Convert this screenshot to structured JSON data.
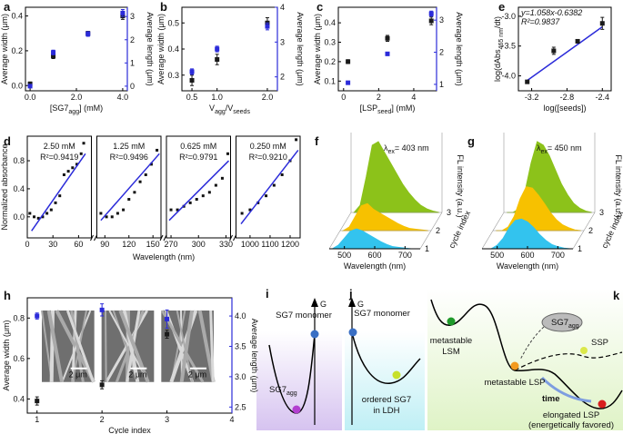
{
  "chart_data": [
    {
      "type": "scatter",
      "label": "a",
      "x_label": [
        "[SG7",
        "agg",
        "] (mM)"
      ],
      "y_label": "Average width (μm)",
      "y2_label": "Average length (μm)",
      "xlim": [
        -0.2,
        4.2
      ],
      "xticks": [
        {
          "value": 0,
          "label": "0.0"
        },
        {
          "value": 2,
          "label": "2.0"
        },
        {
          "value": 4,
          "label": "4.0"
        }
      ],
      "ylim": [
        -0.03,
        0.45
      ],
      "yticks": [
        {
          "value": 0,
          "label": "0.0"
        },
        0.2,
        0.4
      ],
      "y2lim": [
        -0.2,
        3.4
      ],
      "y2ticks": [
        0,
        1,
        2,
        3
      ],
      "series": [
        {
          "color": "#1a1a1a",
          "x": [
            0,
            1,
            2.5,
            4
          ],
          "values": [
            0.01,
            0.17,
            0.3,
            0.4
          ],
          "errors": [
            0.01,
            0.015,
            0.012,
            0.02
          ]
        },
        {
          "color": "#2b2bd9",
          "axis": "y2",
          "x": [
            0,
            1,
            2.5,
            4
          ],
          "values": [
            0.0,
            1.45,
            2.25,
            3.15
          ],
          "errors": [
            0.05,
            0.1,
            0.1,
            0.15
          ]
        }
      ]
    },
    {
      "type": "scatter",
      "label": "b",
      "x_label": [
        "V",
        "agg",
        "/V",
        "seeds"
      ],
      "y_label": "Average width (μm)",
      "y2_label": "Average length (μm)",
      "xlim": [
        0.3,
        2.2
      ],
      "xticks": [
        0.5,
        {
          "value": 1,
          "label": "1.0"
        },
        {
          "value": 2,
          "label": "2.0"
        }
      ],
      "ylim": [
        0.24,
        0.56
      ],
      "yticks": [
        0.3,
        0.4,
        0.5
      ],
      "y2lim": [
        1.6,
        4.0
      ],
      "y2ticks": [
        2,
        3,
        4
      ],
      "series": [
        {
          "color": "#1a1a1a",
          "x": [
            0.5,
            1,
            2
          ],
          "values": [
            0.28,
            0.36,
            0.5
          ],
          "errors": [
            0.02,
            0.02,
            0.02
          ]
        },
        {
          "color": "#2b2bd9",
          "axis": "y2",
          "x": [
            0.5,
            1,
            2
          ],
          "values": [
            2.15,
            2.8,
            3.45
          ],
          "errors": [
            0.08,
            0.08,
            0.1
          ]
        }
      ]
    },
    {
      "type": "scatter",
      "label": "c",
      "x_label": [
        "[LSP",
        "seed",
        "] (mM)"
      ],
      "y_label": "Average width (μm)",
      "y2_label": "Average length (μm)",
      "xlim": [
        -0.3,
        5.3
      ],
      "xticks": [
        0,
        2,
        4
      ],
      "ylim": [
        0.05,
        0.48
      ],
      "yticks": [
        0.1,
        0.2,
        0.3,
        0.4
      ],
      "y2lim": [
        0.8,
        3.4
      ],
      "y2ticks": [
        1,
        2,
        3
      ],
      "series": [
        {
          "color": "#1a1a1a",
          "x": [
            0.25,
            2.5,
            5
          ],
          "values": [
            0.2,
            0.32,
            0.41
          ],
          "errors": [
            0.01,
            0.015,
            0.02
          ]
        },
        {
          "color": "#2b2bd9",
          "axis": "y2",
          "x": [
            0.25,
            2.5,
            5
          ],
          "values": [
            1.05,
            1.95,
            3.2
          ],
          "errors": [
            0.05,
            0.05,
            0.08
          ]
        }
      ]
    },
    {
      "type": "kinetics",
      "label": "d",
      "y_label": "Normalized absorbance",
      "x_label": "Wavelength (nm)",
      "ylim": [
        -0.3,
        1.15
      ],
      "yticks": [
        {
          "value": 0,
          "label": "0.0"
        },
        0.4,
        0.8
      ],
      "fit_color": "#2b2bd9",
      "panels": [
        {
          "conc": "2.50 mM",
          "r2": "R²=0.9419",
          "xlim": [
            0,
            75
          ],
          "xticks": [
            0,
            30,
            60
          ],
          "x": [
            3,
            8,
            13,
            18,
            23,
            28,
            33,
            38,
            43,
            48,
            53,
            58,
            63,
            66
          ],
          "values": [
            0.05,
            0.0,
            -0.02,
            0.0,
            0.05,
            0.1,
            0.2,
            0.3,
            0.6,
            0.65,
            0.7,
            0.75,
            0.9,
            1.05
          ],
          "fit_x": [
            5,
            68
          ],
          "fit_y": [
            -0.2,
            0.9
          ]
        },
        {
          "conc": "1.25 mM",
          "r2": "R²=0.9496",
          "xlim": [
            80,
            160
          ],
          "xticks": [
            90,
            120,
            150
          ],
          "x": [
            85,
            92,
            99,
            106,
            113,
            120,
            127,
            134,
            141,
            148,
            155
          ],
          "values": [
            0.05,
            0.0,
            0.0,
            0.05,
            0.1,
            0.25,
            0.35,
            0.5,
            0.6,
            0.75,
            0.95
          ],
          "fit_x": [
            85,
            158
          ],
          "fit_y": [
            -0.05,
            0.9
          ]
        },
        {
          "conc": "0.625 mM",
          "r2": "R²=0.9791",
          "xlim": [
            265,
            335
          ],
          "xticks": [
            270,
            300,
            330
          ],
          "x": [
            270,
            277,
            284,
            291,
            298,
            305,
            312,
            319,
            326,
            332
          ],
          "values": [
            0.1,
            0.1,
            0.15,
            0.2,
            0.25,
            0.3,
            0.35,
            0.45,
            0.55,
            0.9
          ],
          "fit_x": [
            268,
            333
          ],
          "fit_y": [
            -0.05,
            0.8
          ]
        },
        {
          "conc": "0.250 mM",
          "r2": "R²=0.9210",
          "xlim": [
            930,
            1250
          ],
          "xticks": [
            1000,
            1100,
            1200
          ],
          "x": [
            960,
            1000,
            1040,
            1080,
            1120,
            1160,
            1200,
            1230
          ],
          "values": [
            0.05,
            0.1,
            0.2,
            0.3,
            0.45,
            0.6,
            0.8,
            1.1
          ],
          "fit_x": [
            955,
            1240
          ],
          "fit_y": [
            -0.1,
            0.95
          ]
        }
      ]
    },
    {
      "type": "scatter",
      "label": "e",
      "x_label": "log([seeds])",
      "y_label": [
        "log(dAbs",
        "465 nm",
        "/dt)"
      ],
      "xlim": [
        -3.35,
        -2.3
      ],
      "xticks": [
        -3.2,
        -2.8,
        -2.4
      ],
      "ylim": [
        -4.25,
        -2.85
      ],
      "yticks": [
        {
          "value": -4,
          "label": "-4.0"
        },
        -3.5,
        {
          "value": -3,
          "label": "-3.0"
        }
      ],
      "series": [
        {
          "color": "#1a1a1a",
          "x": [
            -3.25,
            -2.95,
            -2.68,
            -2.4
          ],
          "values": [
            -4.1,
            -3.58,
            -3.42,
            -3.12
          ],
          "errors": [
            0.02,
            0.06,
            0.03,
            0.1
          ]
        }
      ],
      "fit": {
        "slope": 1.058,
        "intercept": -0.6382,
        "color": "#2b2bd9"
      },
      "annotations": [
        "y=1.058x-0.6382",
        "R²=0.9837"
      ]
    },
    {
      "type": "waterfall",
      "label": "f",
      "x_label": "Wavelength (nm)",
      "y_label": "FL intensity (a.u.)",
      "z_label": "cycle index",
      "annotation": [
        "λ",
        "ex",
        "= 403 nm"
      ],
      "xlim": [
        450,
        750
      ],
      "xticks": [
        500,
        600,
        700
      ],
      "x": [
        460,
        480,
        500,
        520,
        540,
        560,
        580,
        600,
        620,
        640,
        660,
        680,
        700,
        720,
        740
      ],
      "series": [
        {
          "name": "1",
          "color": "#33c3ee",
          "values": [
            0,
            0.05,
            0.15,
            0.25,
            0.28,
            0.25,
            0.2,
            0.15,
            0.1,
            0.06,
            0.03,
            0.02,
            0.01,
            0,
            0
          ]
        },
        {
          "name": "2",
          "color": "#f7c100",
          "values": [
            0,
            0.05,
            0.2,
            0.35,
            0.38,
            0.3,
            0.25,
            0.2,
            0.15,
            0.1,
            0.06,
            0.03,
            0.02,
            0.01,
            0
          ]
        },
        {
          "name": "3",
          "color": "#8cc21a",
          "values": [
            0,
            0.1,
            0.5,
            0.95,
            1.0,
            0.85,
            0.7,
            0.55,
            0.4,
            0.28,
            0.18,
            0.1,
            0.05,
            0.02,
            0
          ]
        }
      ]
    },
    {
      "type": "waterfall",
      "label": "g",
      "x_label": "Wavelength (nm)",
      "y_label": "FL intensity (a.u.)",
      "z_label": "cycle index",
      "annotation": [
        "λ",
        "ex",
        "= 450 nm"
      ],
      "xlim": [
        450,
        750
      ],
      "xticks": [
        500,
        600,
        700
      ],
      "x": [
        460,
        480,
        500,
        520,
        540,
        560,
        580,
        600,
        620,
        640,
        660,
        680,
        700,
        720,
        740
      ],
      "series": [
        {
          "name": "1",
          "color": "#33c3ee",
          "values": [
            0,
            0,
            0.05,
            0.15,
            0.3,
            0.4,
            0.42,
            0.38,
            0.3,
            0.2,
            0.12,
            0.06,
            0.03,
            0.01,
            0
          ]
        },
        {
          "name": "2",
          "color": "#f7c100",
          "values": [
            0,
            0,
            0.05,
            0.2,
            0.45,
            0.62,
            0.6,
            0.5,
            0.38,
            0.25,
            0.15,
            0.08,
            0.04,
            0.01,
            0
          ]
        },
        {
          "name": "3",
          "color": "#8cc21a",
          "values": [
            0,
            0,
            0.05,
            0.3,
            0.7,
            1.0,
            0.95,
            0.8,
            0.6,
            0.4,
            0.25,
            0.13,
            0.06,
            0.02,
            0
          ]
        }
      ]
    },
    {
      "type": "scatter",
      "label": "h",
      "x_label": "Cycle index",
      "y_label": "Average width (μm)",
      "y2_label": "Average length (μm)",
      "xlim": [
        0.85,
        4
      ],
      "xticks": [
        1,
        2,
        3,
        4
      ],
      "ylim": [
        0.33,
        0.9
      ],
      "yticks": [
        0.4,
        0.6,
        0.8
      ],
      "y2lim": [
        2.4,
        4.3
      ],
      "y2ticks": [
        2.5,
        {
          "value": 3,
          "label": "3.0"
        },
        3.5,
        {
          "value": 4,
          "label": "4.0"
        }
      ],
      "insets": [
        {
          "scale": "2 μm"
        },
        {
          "scale": "2 μm"
        },
        {
          "scale": "2 μm"
        }
      ],
      "series": [
        {
          "color": "#1a1a1a",
          "x": [
            1,
            2,
            3
          ],
          "values": [
            0.39,
            0.47,
            0.72
          ],
          "errors": [
            0.02,
            0.02,
            0.02
          ]
        },
        {
          "color": "#2b2bd9",
          "axis": "y2",
          "x": [
            1,
            2,
            3
          ],
          "values": [
            4.0,
            4.1,
            3.95
          ],
          "errors": [
            0.05,
            0.1,
            0.15
          ]
        }
      ]
    }
  ],
  "diagrams": [
    {
      "label": "i",
      "axis": "G",
      "monomer": "SG7 monomer",
      "agg": [
        "SG7",
        "agg"
      ]
    },
    {
      "label": "j",
      "axis": "G",
      "monomer": "SG7 monomer",
      "ordered": [
        "ordered SG7",
        "in LDH"
      ]
    },
    {
      "label": "k",
      "lsm": [
        "metastable",
        "LSM"
      ],
      "agg": [
        "SG7",
        "agg"
      ],
      "lsp": "metastable LSP",
      "ssp": "SSP",
      "time": "time",
      "elongated": [
        "elongated LSP",
        "(energetically favored)"
      ]
    }
  ]
}
